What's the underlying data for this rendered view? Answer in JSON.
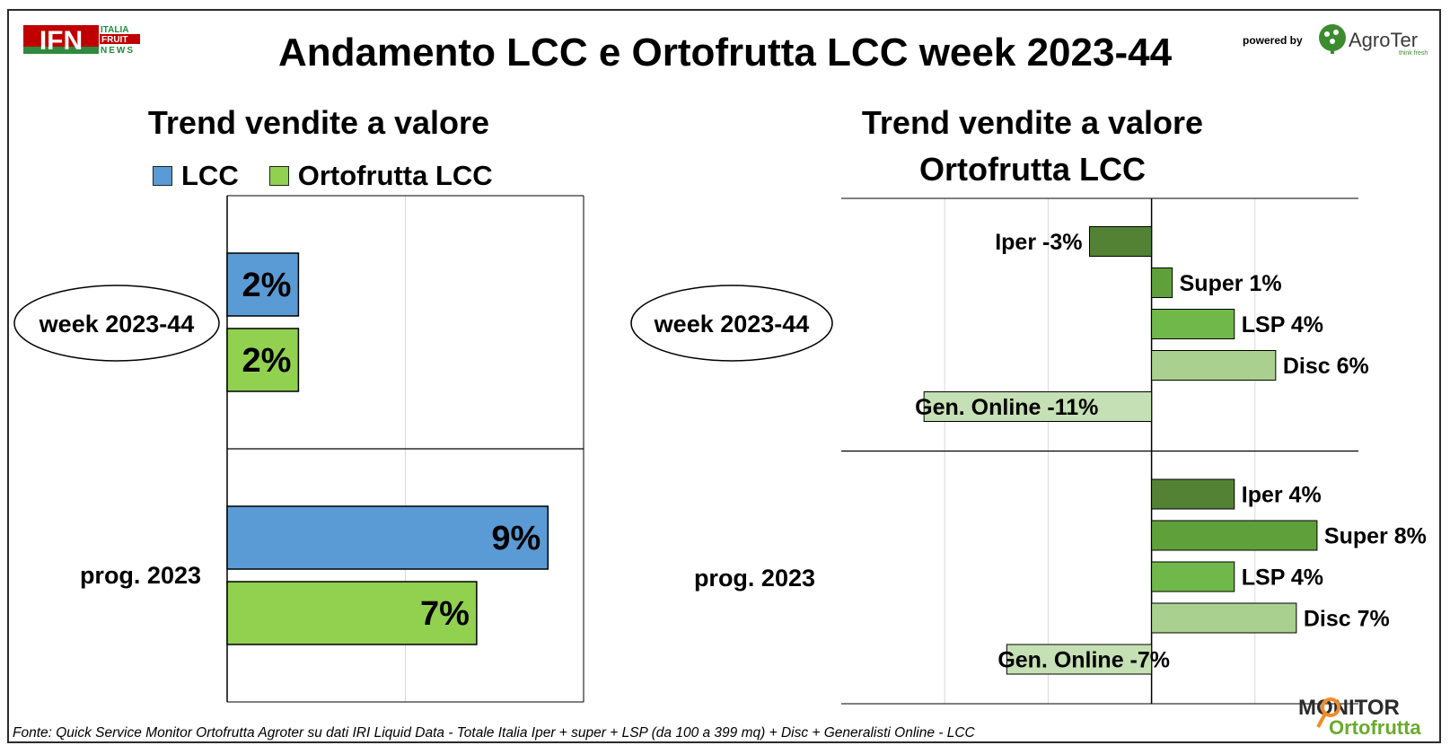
{
  "header": {
    "title": "Andamento LCC e Ortofrutta LCC week 2023-44",
    "logo_left": {
      "main": "IFN",
      "line1": "ITALIA",
      "line2": "FRUIT",
      "line3": "NEWS"
    },
    "powered_by": "powered by",
    "logo_right": {
      "name": "AgroTer",
      "tagline": "think fresh"
    }
  },
  "footer": {
    "source": "Fonte: Quick Service Monitor Ortofrutta Agroter su dati IRI Liquid Data - Totale Italia Iper + super + LSP (da 100 a 399 mq) + Disc + Generalisti Online - LCC",
    "logo": {
      "line1": "MONITOR",
      "line2": "Ortofrutta"
    }
  },
  "colors": {
    "lcc": "#5b9bd5",
    "ortofrutta": "#92d050",
    "iper": "#548235",
    "super": "#5fa03a",
    "lsp": "#70b84a",
    "disc": "#a9d08e",
    "online": "#c5e0b4"
  },
  "chart_data": [
    {
      "type": "bar",
      "orientation": "horizontal",
      "title": "Trend vendite a valore",
      "categories": [
        "week 2023-44",
        "prog. 2023"
      ],
      "series": [
        {
          "name": "LCC",
          "values": [
            2,
            9
          ]
        },
        {
          "name": "Ortofrutta LCC",
          "values": [
            2,
            7
          ]
        }
      ],
      "data_labels": [
        [
          "2%",
          "9%"
        ],
        [
          "2%",
          "7%"
        ]
      ],
      "xlim": [
        0,
        10
      ],
      "grid": true,
      "legend": "top"
    },
    {
      "type": "bar",
      "orientation": "horizontal",
      "title": [
        "Trend vendite a valore",
        "Ortofrutta LCC"
      ],
      "categories": [
        "week 2023-44",
        "prog. 2023"
      ],
      "series": [
        {
          "name": "Iper",
          "values": [
            -3,
            4
          ]
        },
        {
          "name": "Super",
          "values": [
            1,
            8
          ]
        },
        {
          "name": "LSP",
          "values": [
            4,
            4
          ]
        },
        {
          "name": "Disc",
          "values": [
            6,
            7
          ]
        },
        {
          "name": "Gen. Online",
          "values": [
            -11,
            -7
          ]
        }
      ],
      "data_labels": [
        [
          "Iper -3%",
          "Super 1%",
          "LSP 4%",
          "Disc 6%",
          "Gen. Online -11%"
        ],
        [
          "Iper 4%",
          "Super 8%",
          "LSP 4%",
          "Disc 7%",
          "Gen. Online -7%"
        ]
      ],
      "xlim": [
        -15,
        10
      ],
      "grid": true
    }
  ]
}
